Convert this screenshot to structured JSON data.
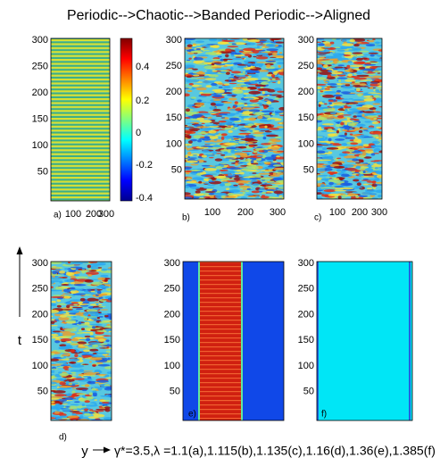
{
  "title": "Periodic-->Chaotic-->Banded Periodic-->Aligned",
  "panels": [
    {
      "label": "a)",
      "xticks": [
        100,
        200,
        300
      ],
      "yticks": [
        50,
        100,
        150,
        200,
        250,
        300
      ]
    },
    {
      "label": "b)",
      "xticks": [
        100,
        200,
        300
      ],
      "yticks": [
        50,
        100,
        150,
        200,
        250,
        300
      ]
    },
    {
      "label": "c)",
      "xticks": [
        100,
        200,
        300
      ],
      "yticks": [
        50,
        100,
        150,
        200,
        250,
        300
      ]
    },
    {
      "label": "d)",
      "yticks": [
        50,
        100,
        150,
        200,
        250,
        300
      ]
    },
    {
      "label": "e)",
      "yticks": [
        50,
        100,
        150,
        200,
        250,
        300
      ]
    },
    {
      "label": "f)",
      "yticks": [
        50,
        100,
        150,
        200,
        250,
        300
      ]
    }
  ],
  "colorbar": {
    "ticks": [
      0.4,
      0.2,
      0,
      -0.2,
      -0.4
    ]
  },
  "axis_labels": {
    "vertical": "t",
    "horizontal": "y"
  },
  "caption": "γ*=3.5,λ =1.1(a),1.115(b),1.135(c),1.16(d),1.36(e),1.385(f)"
}
